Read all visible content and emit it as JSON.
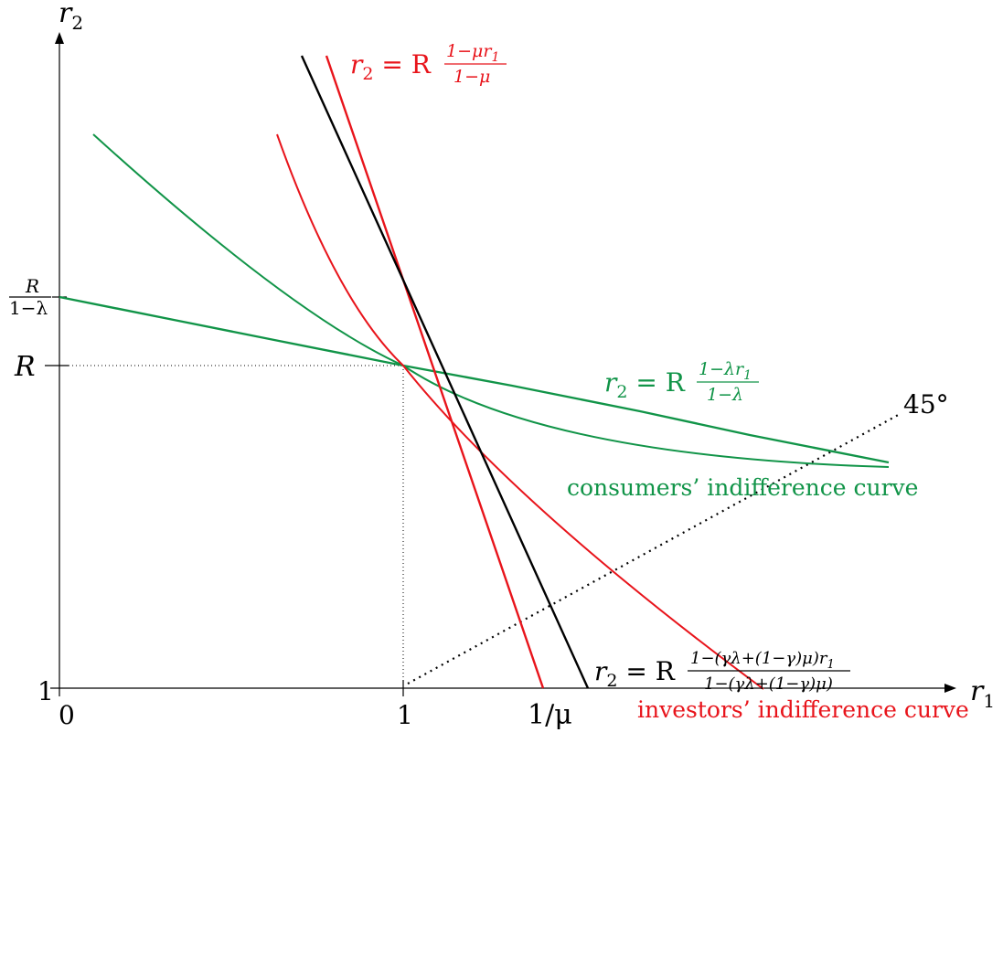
{
  "colors": {
    "black": "#000000",
    "red": "#e8141b",
    "green": "#119448"
  },
  "axes": {
    "x_symbol": "r",
    "x_sub": "1",
    "y_symbol": "r",
    "y_sub": "2",
    "x_ticks": {
      "zero": "0",
      "one": "1",
      "one_over_mu": "1/μ"
    },
    "y_ticks": {
      "one": "1",
      "R": "R",
      "R_frac_num": "R",
      "R_frac_den": "1−λ"
    }
  },
  "labels": {
    "angle": "45°",
    "consumers_curve": "consumers’ indifference curve",
    "investors_curve": "investors’ indifference curve"
  },
  "equations": {
    "red_line": {
      "lhs": "r",
      "lhs_sub": "2",
      "eq": " = R",
      "num": "1−μr",
      "num_sub": "1",
      "den": "1−μ"
    },
    "green_line": {
      "lhs": "r",
      "lhs_sub": "2",
      "eq": " = R",
      "num": "1−λr",
      "num_sub": "1",
      "den": "1−λ"
    },
    "black_line": {
      "lhs": "r",
      "lhs_sub": "2",
      "eq": " = R",
      "num": "1−(γλ+(1−γ)μ)r",
      "num_sub": "1",
      "den": "1−(γλ+(1−γ)μ)"
    }
  }
}
